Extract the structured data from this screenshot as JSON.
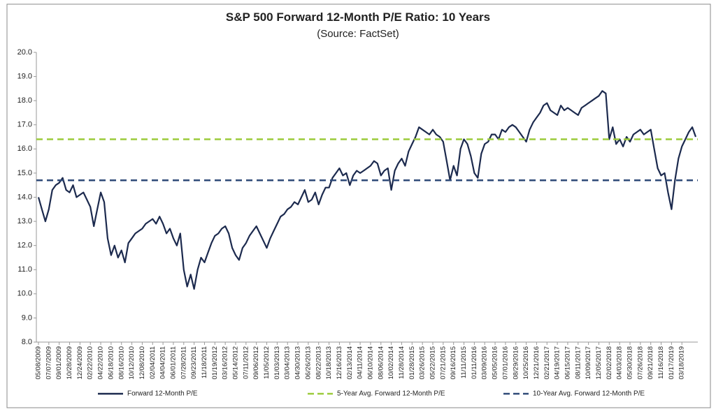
{
  "chart_data": {
    "type": "line",
    "title": "S&P 500 Forward 12-Month P/E Ratio: 10 Years",
    "subtitle": "(Source: FactSet)",
    "categories": [
      "05/08/2009",
      null,
      null,
      "07/07/2009",
      null,
      null,
      "09/01/2009",
      null,
      null,
      "10/28/2009",
      null,
      null,
      "12/24/2009",
      null,
      null,
      "02/22/2010",
      null,
      null,
      "04/22/2010",
      null,
      null,
      "06/18/2010",
      null,
      null,
      "08/16/2010",
      null,
      null,
      "10/12/2010",
      null,
      null,
      "12/08/2010",
      null,
      null,
      "02/04/2011",
      null,
      null,
      "04/04/2011",
      null,
      null,
      "06/01/2011",
      null,
      null,
      "07/28/2011",
      null,
      null,
      "09/23/2011",
      null,
      null,
      "11/18/2011",
      null,
      null,
      "01/19/2012",
      null,
      null,
      "03/16/2012",
      null,
      null,
      "05/14/2012",
      null,
      null,
      "07/11/2012",
      null,
      null,
      "09/06/2012",
      null,
      null,
      "11/05/2012",
      null,
      null,
      "01/03/2013",
      null,
      null,
      "03/04/2013",
      null,
      null,
      "04/30/2013",
      null,
      null,
      "06/26/2013",
      null,
      null,
      "08/22/2013",
      null,
      null,
      "10/18/2013",
      null,
      null,
      "12/16/2013",
      null,
      null,
      "02/13/2014",
      null,
      null,
      "04/11/2014",
      null,
      null,
      "06/10/2014",
      null,
      null,
      "08/06/2014",
      null,
      null,
      "10/02/2014",
      null,
      null,
      "11/28/2014",
      null,
      null,
      "01/28/2015",
      null,
      null,
      "03/26/2015",
      null,
      null,
      "05/22/2015",
      null,
      null,
      "07/21/2015",
      null,
      null,
      "09/16/2015",
      null,
      null,
      "11/11/2015",
      null,
      null,
      "01/11/2016",
      null,
      null,
      "03/09/2016",
      null,
      null,
      "05/05/2016",
      null,
      null,
      "07/01/2016",
      null,
      null,
      "08/29/2016",
      null,
      null,
      "10/25/2016",
      null,
      null,
      "12/21/2016",
      null,
      null,
      "02/21/2017",
      null,
      null,
      "04/19/2017",
      null,
      null,
      "06/15/2017",
      null,
      null,
      "08/11/2017",
      null,
      null,
      "10/09/2017",
      null,
      null,
      "12/05/2017",
      null,
      null,
      "02/02/2018",
      null,
      null,
      "04/03/2018",
      null,
      null,
      "05/30/2018",
      null,
      null,
      "07/26/2018",
      null,
      null,
      "09/21/2018",
      null,
      null,
      "11/16/2018",
      null,
      null,
      "01/17/2019",
      null,
      null,
      "03/18/2019",
      null,
      null,
      null,
      null
    ],
    "series": [
      {
        "name": "Forward 12-Month P/E",
        "color": "#1c2a4e",
        "values": [
          14.0,
          13.5,
          13.0,
          13.5,
          14.3,
          14.5,
          14.6,
          14.8,
          14.3,
          14.2,
          14.5,
          14.0,
          14.1,
          14.2,
          13.9,
          13.6,
          12.8,
          13.5,
          14.2,
          13.8,
          12.3,
          11.6,
          12.0,
          11.5,
          11.8,
          11.3,
          12.1,
          12.3,
          12.5,
          12.6,
          12.7,
          12.9,
          13.0,
          13.1,
          12.9,
          13.2,
          12.9,
          12.5,
          12.7,
          12.3,
          12.0,
          12.5,
          11.0,
          10.3,
          10.8,
          10.2,
          11.0,
          11.5,
          11.3,
          11.7,
          12.1,
          12.4,
          12.5,
          12.7,
          12.8,
          12.5,
          11.9,
          11.6,
          11.4,
          11.9,
          12.1,
          12.4,
          12.6,
          12.8,
          12.5,
          12.2,
          11.9,
          12.3,
          12.6,
          12.9,
          13.2,
          13.3,
          13.5,
          13.6,
          13.8,
          13.7,
          14.0,
          14.3,
          13.8,
          13.9,
          14.2,
          13.7,
          14.1,
          14.4,
          14.4,
          14.8,
          15.0,
          15.2,
          14.9,
          15.0,
          14.5,
          14.9,
          15.1,
          15.0,
          15.1,
          15.2,
          15.3,
          15.5,
          15.4,
          14.9,
          15.1,
          15.2,
          14.3,
          15.1,
          15.4,
          15.6,
          15.3,
          15.9,
          16.2,
          16.5,
          16.9,
          16.8,
          16.7,
          16.6,
          16.8,
          16.6,
          16.5,
          16.3,
          15.5,
          14.7,
          15.3,
          14.9,
          16.0,
          16.4,
          16.2,
          15.7,
          15.0,
          14.8,
          15.8,
          16.2,
          16.3,
          16.6,
          16.6,
          16.4,
          16.8,
          16.7,
          16.9,
          17.0,
          16.9,
          16.7,
          16.5,
          16.3,
          16.8,
          17.1,
          17.3,
          17.5,
          17.8,
          17.9,
          17.6,
          17.5,
          17.4,
          17.8,
          17.6,
          17.7,
          17.6,
          17.5,
          17.4,
          17.7,
          17.8,
          17.9,
          18.0,
          18.1,
          18.2,
          18.4,
          18.3,
          16.4,
          16.9,
          16.2,
          16.4,
          16.1,
          16.5,
          16.3,
          16.6,
          16.7,
          16.8,
          16.6,
          16.7,
          16.8,
          16.0,
          15.2,
          14.9,
          15.0,
          14.2,
          13.5,
          14.7,
          15.6,
          16.1,
          16.4,
          16.7,
          16.9,
          16.5
        ]
      },
      {
        "name": "5-Year Avg. Forward 12-Month P/E",
        "color": "#9ccb3b",
        "value": 16.4,
        "dashed": true
      },
      {
        "name": "10-Year Avg. Forward 12-Month P/E",
        "color": "#2f4a78",
        "value": 14.7,
        "dashed": true
      }
    ],
    "ylim": [
      8,
      20
    ],
    "yticks": [
      {
        "value": 8,
        "label": "8.0"
      },
      {
        "value": 9,
        "label": "9.0"
      },
      {
        "value": 10,
        "label": "10.0"
      },
      {
        "value": 11,
        "label": "11.0"
      },
      {
        "value": 12,
        "label": "12.0"
      },
      {
        "value": 13,
        "label": "13.0"
      },
      {
        "value": 14,
        "label": "14.0"
      },
      {
        "value": 15,
        "label": "15.0"
      },
      {
        "value": 16,
        "label": "16.0"
      },
      {
        "value": 17,
        "label": "17.0"
      },
      {
        "value": 18,
        "label": "18.0"
      },
      {
        "value": 19,
        "label": "19.0"
      },
      {
        "value": 20,
        "label": "20.0"
      }
    ],
    "grid": false,
    "legend": "bottom"
  }
}
